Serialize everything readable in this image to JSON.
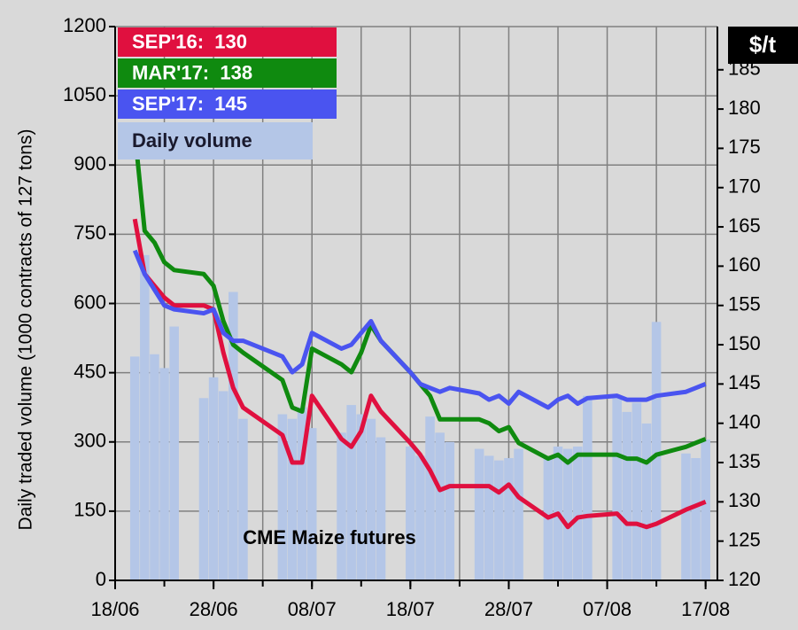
{
  "chart_data": {
    "type": "bar_line",
    "ylabel": "Daily traded volume  (1000 contracts of 127 tons)",
    "y2label": "$/t",
    "annotation": "CME Maize futures",
    "x": [
      2,
      3,
      4,
      5,
      6,
      9,
      10,
      11,
      12,
      13,
      17,
      18,
      19,
      20,
      23,
      24,
      25,
      26,
      27,
      30,
      31,
      32,
      33,
      34,
      37,
      38,
      39,
      40,
      41,
      44,
      45,
      46,
      47,
      48,
      51,
      52,
      53,
      54,
      55,
      58,
      59,
      60
    ],
    "xlim": [
      0,
      61.2
    ],
    "xticks": [
      {
        "value": 0,
        "label": "18/06"
      },
      {
        "value": 10,
        "label": "28/06"
      },
      {
        "value": 20,
        "label": "08/07"
      },
      {
        "value": 30,
        "label": "18/07"
      },
      {
        "value": 40,
        "label": "28/07"
      },
      {
        "value": 50,
        "label": "07/08"
      },
      {
        "value": 60,
        "label": "17/08"
      }
    ],
    "xgrid": [
      0,
      5,
      10,
      15,
      20,
      25,
      30,
      35,
      40,
      45,
      50,
      55,
      60
    ],
    "ylim": [
      0,
      1200
    ],
    "yticks": [
      0,
      150,
      300,
      450,
      600,
      750,
      900,
      1050,
      1200
    ],
    "y2lim": [
      120,
      190.5
    ],
    "y2ticks": [
      120,
      125,
      130,
      135,
      140,
      145,
      150,
      155,
      160,
      165,
      170,
      175,
      180,
      185
    ],
    "grid": true,
    "series": [
      {
        "name": "SEP'16:  130",
        "type": "line",
        "axis": "y2",
        "color": "#e0103f",
        "values": [
          166,
          159,
          157.5,
          156,
          155,
          155,
          154.5,
          149,
          144.5,
          142,
          138.5,
          135,
          135,
          143.5,
          138,
          137,
          139,
          143.5,
          141.5,
          137.5,
          136,
          134,
          131.5,
          132,
          132,
          132,
          131.2,
          132.2,
          130.6,
          128,
          128.5,
          126.8,
          128,
          128.2,
          128.5,
          127.2,
          127.2,
          126.8,
          127.2,
          129,
          129.5,
          130
        ]
      },
      {
        "name": "MAR'17:  138",
        "type": "line",
        "axis": "y2",
        "color": "#0f8a0f",
        "values": [
          177,
          164.5,
          163,
          160.5,
          159.5,
          159,
          157.5,
          153,
          150,
          149,
          145.5,
          142,
          141.5,
          149.5,
          147.5,
          146.5,
          149,
          152.5,
          150.5,
          146.5,
          145,
          143.5,
          140.5,
          140.5,
          140.5,
          140,
          139,
          139.5,
          137.5,
          135.5,
          136,
          135,
          136,
          136,
          136,
          135.5,
          135.5,
          135,
          136,
          137,
          137.5,
          138
        ]
      },
      {
        "name": "SEP'17:  145",
        "type": "line",
        "axis": "y2",
        "color": "#4a54f0",
        "values": [
          162,
          159,
          157,
          155,
          154.5,
          154,
          154.5,
          151.5,
          150.5,
          150.5,
          148.5,
          146.5,
          147.5,
          151.5,
          149.5,
          150,
          151.5,
          153,
          150.5,
          146.5,
          145,
          144.5,
          144,
          144.5,
          143.8,
          143,
          143.5,
          142.5,
          144,
          142,
          143,
          143.5,
          142.5,
          143.2,
          143.5,
          143,
          143,
          143,
          143.5,
          144,
          144.5,
          145
        ]
      },
      {
        "name": "Daily volume",
        "type": "bar",
        "color": "#b4c6e7",
        "values": [
          485,
          705,
          490,
          460,
          550,
          395,
          440,
          410,
          625,
          350,
          360,
          350,
          375,
          330,
          320,
          380,
          360,
          350,
          310,
          290,
          270,
          355,
          320,
          300,
          285,
          270,
          260,
          265,
          285,
          265,
          290,
          285,
          290,
          400,
          395,
          365,
          385,
          340,
          560,
          275,
          265,
          305
        ]
      }
    ]
  }
}
